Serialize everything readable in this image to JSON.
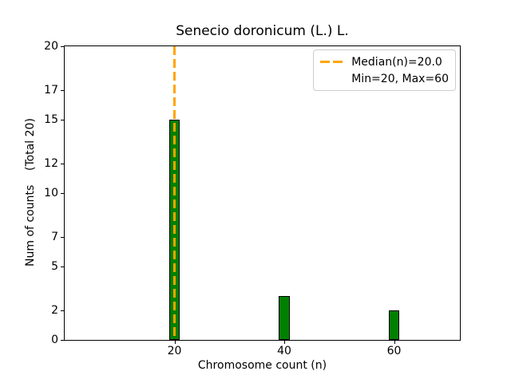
{
  "chart_data": {
    "type": "bar",
    "title": "Senecio doronicum (L.) L.",
    "xlabel": "Chromosome count (n)",
    "ylabel": "Num of counts    (Total 20)",
    "x": [
      20,
      40,
      60
    ],
    "values": [
      15,
      3,
      2
    ],
    "bar_width_data_units": 2,
    "bar_color": "#008000",
    "bar_edge_color": "#000000",
    "xlim": [
      0,
      72
    ],
    "ylim": [
      0,
      20
    ],
    "xtick_values": [
      20,
      40,
      60
    ],
    "xtick_labels": [
      "20",
      "40",
      "60"
    ],
    "ytick_values": [
      0,
      2,
      5,
      7,
      10,
      12,
      15,
      17,
      20
    ],
    "ytick_labels": [
      "0",
      "2",
      "5",
      "7",
      "10",
      "12",
      "15",
      "17",
      "20"
    ],
    "grid": false,
    "median_line": {
      "x": 20,
      "color": "#FFA500",
      "style": "dashed",
      "label": "Median(n)=20.0"
    },
    "legend": {
      "position": "upper-right",
      "entries": [
        {
          "marker": "dashed-line",
          "color": "#FFA500",
          "label": "Median(n)=20.0"
        },
        {
          "marker": "none",
          "color": "",
          "label": "Min=20, Max=60"
        }
      ]
    }
  }
}
